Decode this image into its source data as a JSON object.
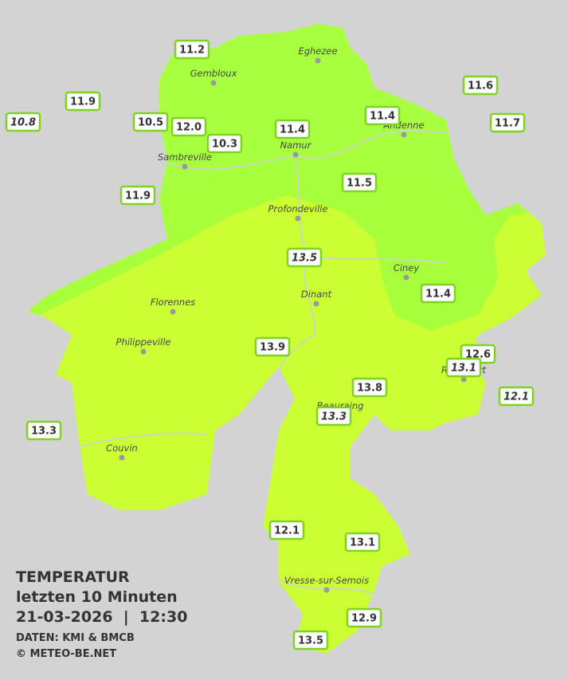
{
  "legend": {
    "title": "TEMPERATUR",
    "subtitle": "letzten 10 Minuten",
    "datetime": "21-03-2026  |  12:30",
    "source": "DATEN: KMI & BMCB",
    "credit": "© METEO-BE.NET"
  },
  "cities": [
    "Eghezee",
    "Gembloux",
    "Andenne",
    "Namur",
    "Sambreville",
    "Profondeville",
    "Ciney",
    "Dinant",
    "Florennes",
    "Philippeville",
    "Rochefort",
    "Beauraing",
    "Couvin",
    "Vresse-sur-Semois"
  ],
  "stations": [
    "11.2",
    "11.9",
    "10.8",
    "10.5",
    "12.0",
    "10.3",
    "11.4",
    "11.4",
    "11.6",
    "11.7",
    "11.9",
    "11.5",
    "13.5",
    "11.4",
    "13.9",
    "12.6",
    "13.1",
    "12.1",
    "13.8",
    "13.3",
    "13.3",
    "12.1",
    "13.1",
    "12.9",
    "13.5"
  ]
}
